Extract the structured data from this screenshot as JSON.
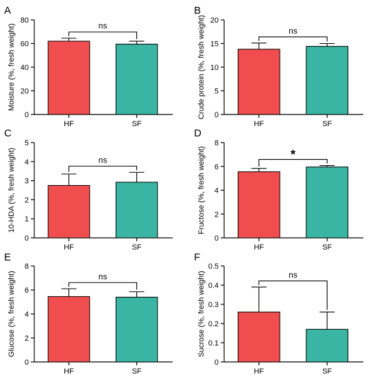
{
  "chart_data": [
    {
      "panel": "A",
      "type": "bar",
      "categories": [
        "HF",
        "SF"
      ],
      "values": [
        62,
        59.5
      ],
      "errors": [
        2.5,
        2.5
      ],
      "ylabel": "Moisture (%, fresh weight)",
      "ylim": [
        0,
        80
      ],
      "yticks": [
        0,
        20,
        40,
        60,
        80
      ],
      "significance": "ns",
      "colors": [
        "#f04e4e",
        "#3ab5a3"
      ]
    },
    {
      "panel": "B",
      "type": "bar",
      "categories": [
        "HF",
        "SF"
      ],
      "values": [
        13.8,
        14.4
      ],
      "errors": [
        1.3,
        0.6
      ],
      "ylabel": "Crude protein (%, fresh weight)",
      "ylim": [
        0,
        20
      ],
      "yticks": [
        0,
        5,
        10,
        15,
        20
      ],
      "significance": "ns",
      "colors": [
        "#f04e4e",
        "#3ab5a3"
      ]
    },
    {
      "panel": "C",
      "type": "bar",
      "categories": [
        "HF",
        "SF"
      ],
      "values": [
        2.75,
        2.92
      ],
      "errors": [
        0.6,
        0.52
      ],
      "ylabel": "10-HDA (%, fresh weight)",
      "ylim": [
        0,
        5
      ],
      "yticks": [
        0,
        1,
        2,
        3,
        4,
        5
      ],
      "significance": "ns",
      "colors": [
        "#f04e4e",
        "#3ab5a3"
      ]
    },
    {
      "panel": "D",
      "type": "bar",
      "categories": [
        "HF",
        "SF"
      ],
      "values": [
        5.55,
        5.95
      ],
      "errors": [
        0.28,
        0.12
      ],
      "ylabel": "Fructose (%, fresh weight)",
      "ylim": [
        0,
        8
      ],
      "yticks": [
        0,
        2,
        4,
        6,
        8
      ],
      "significance": "*",
      "colors": [
        "#f04e4e",
        "#3ab5a3"
      ]
    },
    {
      "panel": "E",
      "type": "bar",
      "categories": [
        "HF",
        "SF"
      ],
      "values": [
        5.45,
        5.4
      ],
      "errors": [
        0.65,
        0.45
      ],
      "ylabel": "Glucose (%, fresh weight)",
      "ylim": [
        0,
        8
      ],
      "yticks": [
        0,
        2,
        4,
        6,
        8
      ],
      "significance": "ns",
      "colors": [
        "#f04e4e",
        "#3ab5a3"
      ]
    },
    {
      "panel": "F",
      "type": "bar",
      "categories": [
        "HF",
        "SF"
      ],
      "values": [
        0.26,
        0.17
      ],
      "errors": [
        0.13,
        0.09
      ],
      "ylabel": "Sucrose (%, fresh weight)",
      "ylim": [
        0,
        0.5
      ],
      "yticks": [
        0,
        0.1,
        0.2,
        0.3,
        0.4,
        0.5
      ],
      "significance": "ns",
      "colors": [
        "#f04e4e",
        "#3ab5a3"
      ]
    }
  ]
}
